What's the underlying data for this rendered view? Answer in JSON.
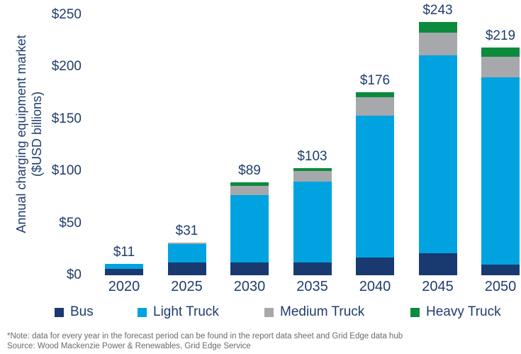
{
  "chart_data": {
    "type": "bar",
    "stacked": true,
    "title": "",
    "ylabel_line1": "Annual charging equipment market",
    "ylabel_line2": "($USD billions)",
    "xlabel": "",
    "categories": [
      "2020",
      "2025",
      "2030",
      "2035",
      "2040",
      "2045",
      "2050"
    ],
    "series": [
      {
        "name": "Bus",
        "color": "#183A70",
        "values": [
          6,
          12,
          12,
          12,
          17,
          21,
          10
        ]
      },
      {
        "name": "Light Truck",
        "color": "#00A3E0",
        "values": [
          5,
          18,
          65,
          78,
          136,
          190,
          180
        ]
      },
      {
        "name": "Medium Truck",
        "color": "#A6A8AB",
        "values": [
          0,
          1,
          9,
          10,
          18,
          22,
          20
        ]
      },
      {
        "name": "Heavy Truck",
        "color": "#0C8A3E",
        "values": [
          0,
          0,
          3,
          3,
          5,
          10,
          9
        ]
      }
    ],
    "totals": [
      11,
      31,
      89,
      103,
      176,
      243,
      219
    ],
    "total_labels": [
      "$11",
      "$31",
      "$89",
      "$103",
      "$176",
      "$243",
      "$219"
    ],
    "ylim": [
      0,
      250
    ],
    "y_tick_values": [
      0,
      50,
      100,
      150,
      200,
      250
    ],
    "y_tick_labels": [
      "$0",
      "$50",
      "$100",
      "$150",
      "$200",
      "$250"
    ],
    "grid": false,
    "legend_position": "bottom"
  },
  "legend": {
    "items": [
      "Bus",
      "Light Truck",
      "Medium Truck",
      "Heavy Truck"
    ]
  },
  "footnotes": {
    "note": "*Note: data for every year in the forecast period can be found in the report data sheet and Grid Edge data hub",
    "source": "Source: Wood Mackenzie Power & Renewables, Grid Edge Service"
  },
  "colors": {
    "axis_text": "#1F3D6D",
    "footnote_text": "#6A6A6A",
    "background": "#FFFFFF"
  }
}
